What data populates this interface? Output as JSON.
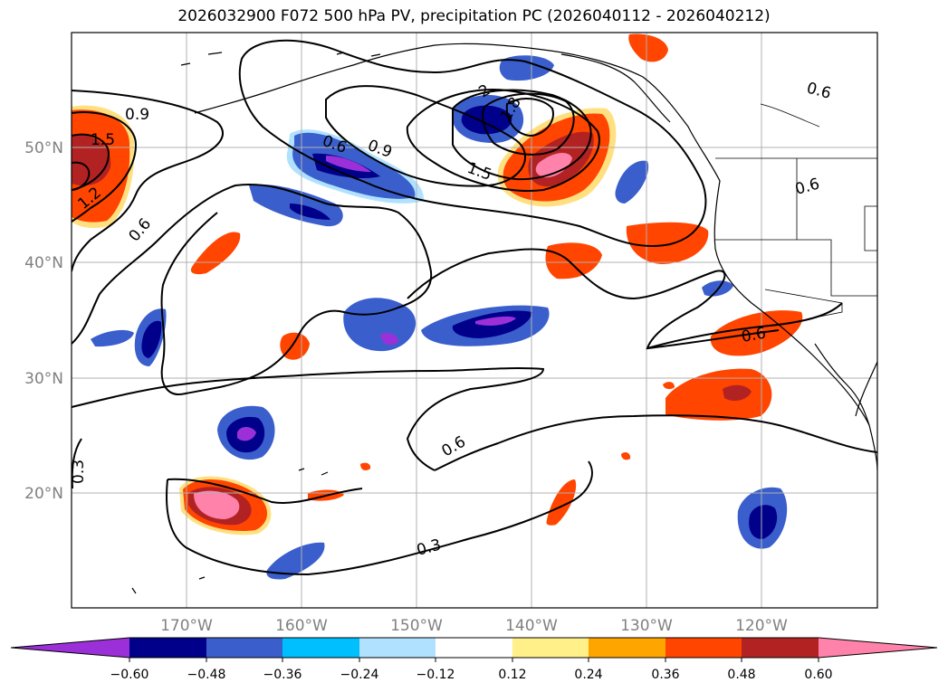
{
  "title": "2026032900 F072 500 hPa PV, precipitation PC (2026040112 - 2026040212)",
  "map": {
    "lon_ticks": [
      "170°W",
      "160°W",
      "150°W",
      "140°W",
      "130°W",
      "120°W"
    ],
    "lat_ticks": [
      "50°N",
      "40°N",
      "30°N",
      "20°N"
    ],
    "contour_labels": [
      "0.9",
      "1.5",
      "1.2",
      "0.6",
      "0.6",
      "0.9",
      "2",
      "1.8",
      "1.5",
      "0.6",
      "0.6",
      "0.6",
      "0.6",
      "0.3",
      "0.3"
    ]
  },
  "colorbar": {
    "ticks": [
      "−0.60",
      "−0.48",
      "−0.36",
      "−0.24",
      "−0.12",
      "0.12",
      "0.24",
      "0.36",
      "0.48",
      "0.60"
    ],
    "colors": [
      "#9b30d9",
      "#00008b",
      "#3a5fcd",
      "#00bfff",
      "#b0e2ff",
      "#ffffff",
      "#fff08a",
      "#ffa500",
      "#ff4500",
      "#b22222",
      "#ff82ab",
      "#ff82ab"
    ]
  }
}
